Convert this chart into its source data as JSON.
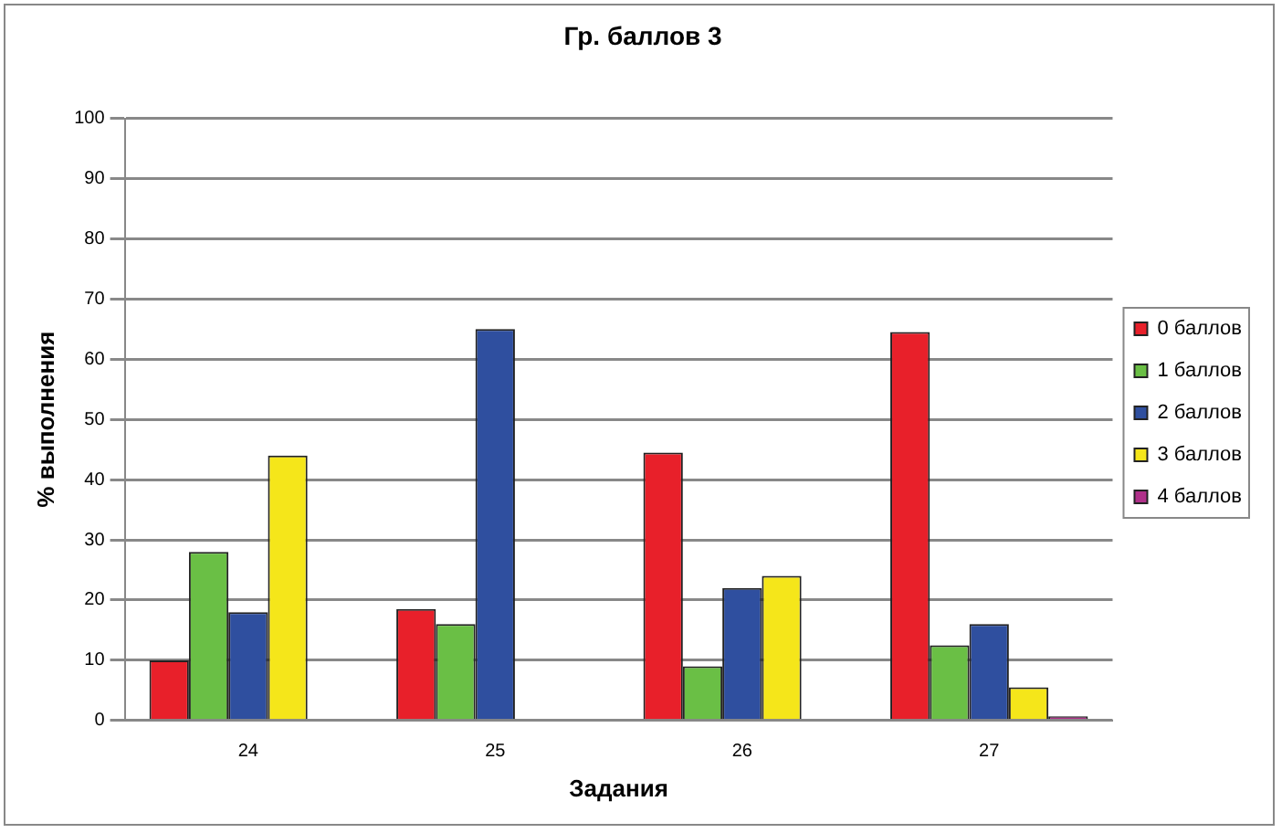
{
  "chart_data": {
    "type": "bar",
    "title": "Гр. баллов 3",
    "xlabel": "Задания",
    "ylabel": "% выполнения",
    "categories": [
      "24",
      "25",
      "26",
      "27"
    ],
    "series": [
      {
        "name": "0 баллов",
        "color": "#e8202a",
        "values": [
          10,
          18.5,
          44.5,
          64.5
        ]
      },
      {
        "name": "1 баллов",
        "color": "#6abf45",
        "values": [
          28,
          16,
          9,
          12.5
        ]
      },
      {
        "name": "2 баллов",
        "color": "#2f4f9f",
        "values": [
          18,
          65,
          22,
          16
        ]
      },
      {
        "name": "3 баллов",
        "color": "#f5e61a",
        "values": [
          44,
          0,
          24,
          5.5
        ]
      },
      {
        "name": "4 баллов",
        "color": "#b0308a",
        "values": [
          0,
          0,
          0,
          0.7
        ]
      }
    ],
    "ylim": [
      0,
      100
    ],
    "yticks": [
      0,
      10,
      20,
      30,
      40,
      50,
      60,
      70,
      80,
      90,
      100
    ],
    "grid": "y",
    "legend": "right"
  }
}
